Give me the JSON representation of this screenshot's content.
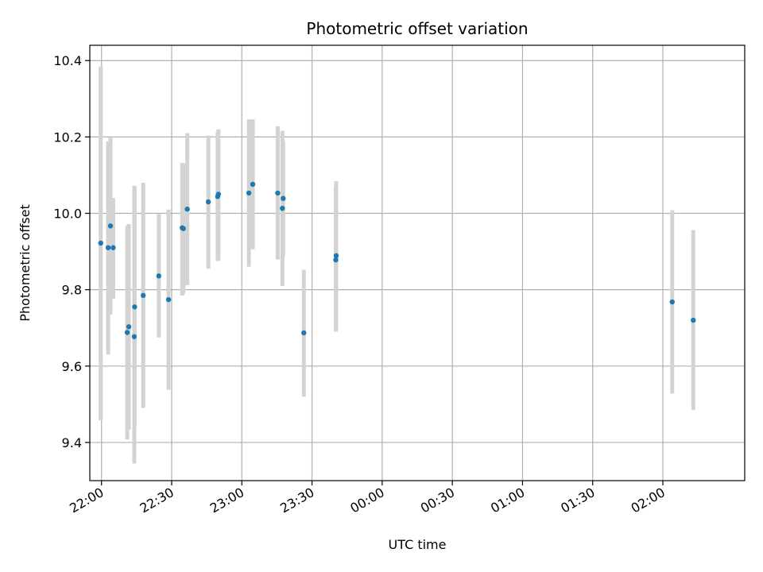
{
  "chart_data": {
    "type": "scatter",
    "title": "Photometric offset variation",
    "xlabel": "UTC time",
    "ylabel": "Photometric offset",
    "x_unit": "UTC time (HH:MM), times after midnight belong to the following day",
    "xlim": [
      "21:55",
      "02:35"
    ],
    "ylim": [
      9.3,
      10.44
    ],
    "x_ticks": [
      "22:00",
      "22:30",
      "23:00",
      "23:30",
      "00:00",
      "00:30",
      "01:00",
      "01:30",
      "02:00"
    ],
    "y_ticks": [
      "9.4",
      "9.6",
      "9.8",
      "10.0",
      "10.2",
      "10.4"
    ],
    "grid": true,
    "colors": {
      "points": "#1f77b4",
      "errorbars": "#d3d3d3",
      "grid": "#b0b0b0"
    },
    "series": [
      {
        "points": [
          {
            "x": "21:59:40",
            "y": 9.922,
            "ylow": 9.458,
            "yhigh": 10.385
          },
          {
            "x": "22:02:50",
            "y": 9.91,
            "ylow": 9.63,
            "yhigh": 10.188
          },
          {
            "x": "22:03:50",
            "y": 9.967,
            "ylow": 9.735,
            "yhigh": 10.198
          },
          {
            "x": "22:05:00",
            "y": 9.91,
            "ylow": 9.776,
            "yhigh": 10.04
          },
          {
            "x": "22:11:00",
            "y": 9.688,
            "ylow": 9.408,
            "yhigh": 9.967
          },
          {
            "x": "22:11:40",
            "y": 9.703,
            "ylow": 9.434,
            "yhigh": 9.972
          },
          {
            "x": "22:14:00",
            "y": 9.677,
            "ylow": 9.345,
            "yhigh": 10.072
          },
          {
            "x": "22:14:10",
            "y": 9.755,
            "ylow": 9.44,
            "yhigh": 10.07
          },
          {
            "x": "22:17:50",
            "y": 9.785,
            "ylow": 9.49,
            "yhigh": 10.08
          },
          {
            "x": "22:24:30",
            "y": 9.836,
            "ylow": 9.675,
            "yhigh": 9.998
          },
          {
            "x": "22:28:40",
            "y": 9.774,
            "ylow": 9.538,
            "yhigh": 10.01
          },
          {
            "x": "22:34:30",
            "y": 9.962,
            "ylow": 9.785,
            "yhigh": 10.132
          },
          {
            "x": "22:35:00",
            "y": 9.96,
            "ylow": 9.79,
            "yhigh": 10.13
          },
          {
            "x": "22:36:40",
            "y": 10.011,
            "ylow": 9.812,
            "yhigh": 10.21
          },
          {
            "x": "22:45:40",
            "y": 10.03,
            "ylow": 9.855,
            "yhigh": 10.204
          },
          {
            "x": "22:49:40",
            "y": 10.044,
            "ylow": 9.875,
            "yhigh": 10.212
          },
          {
            "x": "22:50:00",
            "y": 10.05,
            "ylow": 9.878,
            "yhigh": 10.22
          },
          {
            "x": "23:03:00",
            "y": 10.053,
            "ylow": 9.86,
            "yhigh": 10.246
          },
          {
            "x": "23:04:40",
            "y": 10.076,
            "ylow": 9.906,
            "yhigh": 10.246
          },
          {
            "x": "23:15:20",
            "y": 10.053,
            "ylow": 9.879,
            "yhigh": 10.228
          },
          {
            "x": "23:17:20",
            "y": 10.013,
            "ylow": 9.81,
            "yhigh": 10.216
          },
          {
            "x": "23:17:40",
            "y": 10.039,
            "ylow": 9.887,
            "yhigh": 10.19
          },
          {
            "x": "23:26:30",
            "y": 9.687,
            "ylow": 9.52,
            "yhigh": 9.852
          },
          {
            "x": "23:40:10",
            "y": 9.878,
            "ylow": 9.69,
            "yhigh": 10.066
          },
          {
            "x": "23:40:20",
            "y": 9.889,
            "ylow": 9.695,
            "yhigh": 10.084
          },
          {
            "x": "02:04:00",
            "y": 9.768,
            "ylow": 9.528,
            "yhigh": 10.008
          },
          {
            "x": "02:13:00",
            "y": 9.72,
            "ylow": 9.485,
            "yhigh": 9.956
          }
        ]
      }
    ]
  }
}
